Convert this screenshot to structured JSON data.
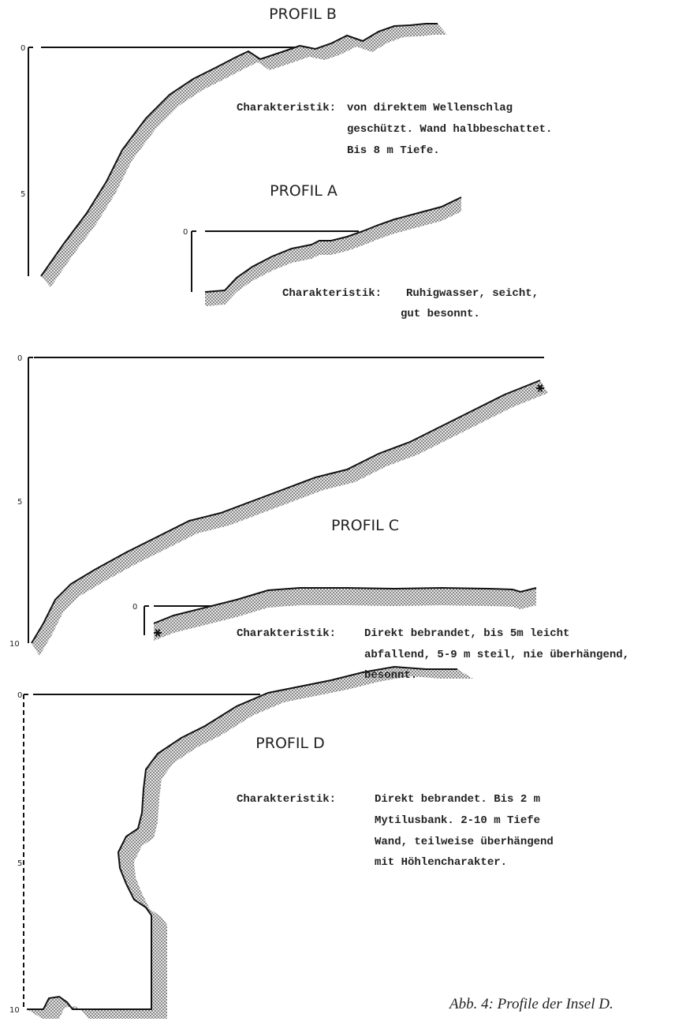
{
  "profile_b": {
    "title": "PROFIL B",
    "axis": [
      "0",
      "5"
    ],
    "label": "Charakteristik:",
    "lines": [
      "von direktem Wellenschlag",
      "geschützt. Wand halbbeschattet.",
      "Bis 8 m Tiefe."
    ]
  },
  "profile_a": {
    "title": "PROFIL A",
    "axis": [
      "0"
    ],
    "label": "Charakteristik:",
    "lines": [
      "Ruhigwasser, seicht,",
      "gut besonnt."
    ]
  },
  "profile_c": {
    "title": "PROFIL C",
    "axis": [
      "0",
      "5",
      "10",
      "0"
    ],
    "label": "Charakteristik:",
    "lines": [
      "Direkt bebrandet, bis 5m leicht",
      "abfallend, 5-9 m steil, nie überhängend,",
      "besonnt."
    ]
  },
  "profile_d": {
    "title": "PROFIL D",
    "axis": [
      "0",
      "5",
      "10"
    ],
    "label": "Charakteristik:",
    "lines": [
      "Direkt bebrandet. Bis 2 m",
      "Mytilusbank. 2-10 m Tiefe",
      "Wand, teilweise überhängend",
      "mit Höhlencharakter."
    ]
  },
  "caption": "Abb. 4: Profile der Insel D."
}
